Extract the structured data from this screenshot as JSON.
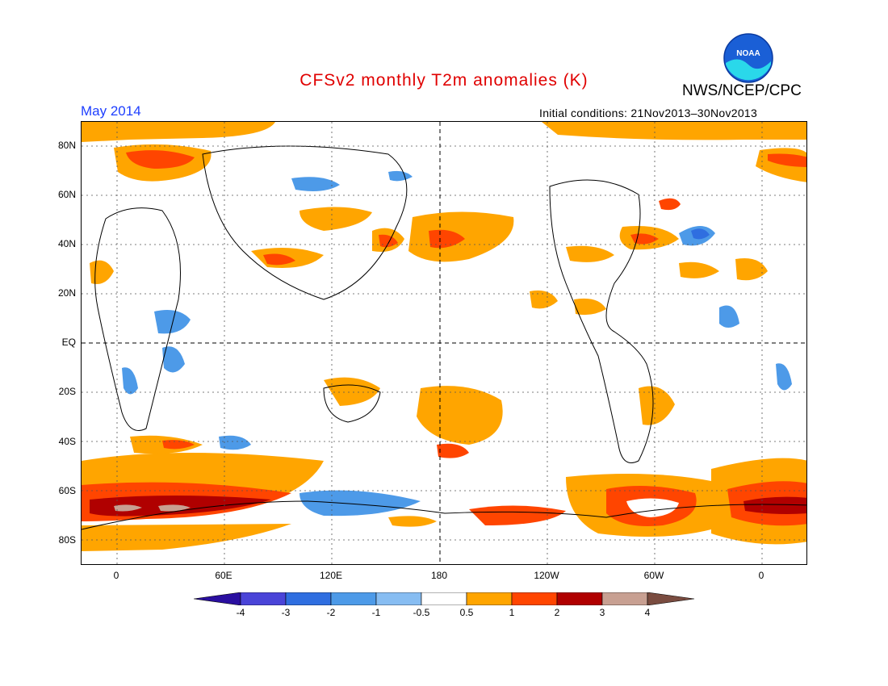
{
  "title": "CFSv2 monthly T2m anomalies (K)",
  "agency": "NWS/NCEP/CPC",
  "month": "May 2014",
  "initial_conditions": "Initial conditions: 21Nov2013–30Nov2013",
  "logo": {
    "text": "NOAA",
    "color": "#1a5fd6"
  },
  "map": {
    "y_labels": [
      "80N",
      "60N",
      "40N",
      "20N",
      "EQ",
      "20S",
      "40S",
      "60S",
      "80S"
    ],
    "x_labels": [
      "0",
      "60E",
      "120E",
      "180",
      "120W",
      "60W",
      "0"
    ]
  },
  "colorbar": {
    "labels": [
      "-4",
      "-3",
      "-2",
      "-1",
      "-0.5",
      "0.5",
      "1",
      "2",
      "3",
      "4"
    ],
    "colors": [
      "#2a0fa0",
      "#4a44d8",
      "#2f6ee0",
      "#4d9ae8",
      "#87bdf2",
      "#ffffff",
      "#ffa500",
      "#ff4500",
      "#b00000",
      "#c8a092",
      "#7a4c40"
    ]
  }
}
